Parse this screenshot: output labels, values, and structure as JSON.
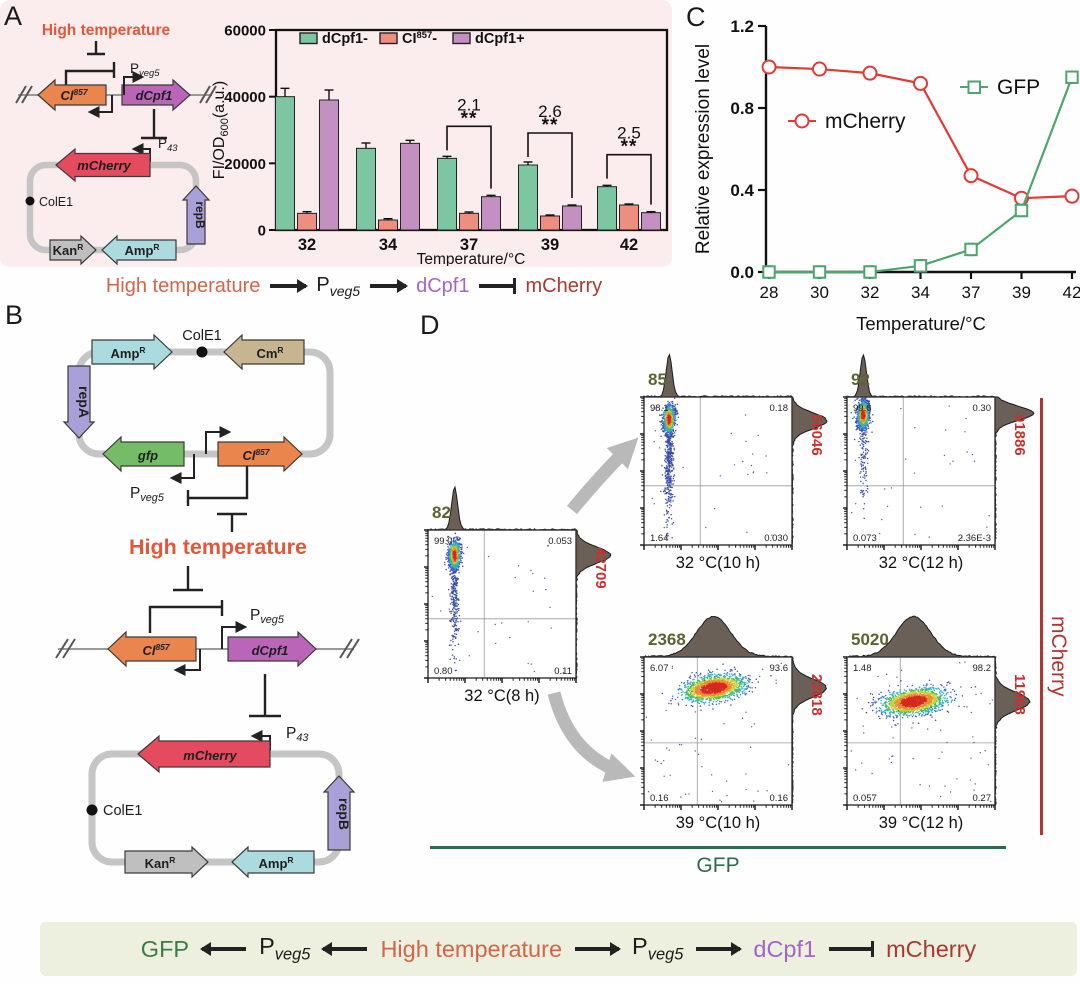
{
  "figure": {
    "panel_labels": {
      "a": "A",
      "b": "B",
      "c": "C",
      "d": "D"
    }
  },
  "colors": {
    "pink_bg": "#fbeced",
    "banner_bg": "#edf0df",
    "bar_green": "#7cc6a2",
    "bar_salmon": "#ee8e7e",
    "bar_purple": "#c48fc1",
    "mcherry_arrow": "#e44b5f",
    "ci857_arrow": "#e9854d",
    "dcpf1_arrow": "#bb65b8",
    "amp_arrow": "#abdbdf",
    "kan_arrow": "#bfbfbf",
    "rep_arrow": "#a9a0d8",
    "cm_arrow": "#c8b58f",
    "gfp_arrow": "#74bd66",
    "backbone": "#c5c5c5",
    "high_temp_text": "#e2573a",
    "gfp_text": "#3c7c46",
    "mcherry_text": "#a93a30",
    "dcpf1_text": "#a465c9",
    "flow_red_number": "#c53230",
    "flow_olive_number": "#5b6430",
    "hist_fill": "#6a6057",
    "gray_arrow": "#b9b9b9",
    "line_mcherry": "#e03a36",
    "line_gfp": "#4da46c"
  },
  "panel_a": {
    "diagram": {
      "high_temp": "High temperature",
      "pveg5": {
        "base": "P",
        "sub": "veg5"
      },
      "ci857": {
        "base": "Cl",
        "sup": "857"
      },
      "dcpf1": "dCpf1",
      "p43": {
        "base": "P",
        "sub": "43"
      },
      "mcherry": "mCherry",
      "cole1": "ColE1",
      "kan": {
        "base": "Kan",
        "sup": "R"
      },
      "amp": {
        "base": "Amp",
        "sup": "R"
      },
      "repb": "repB"
    },
    "scheme": {
      "high_temp": "High temperature",
      "pveg5": {
        "base": "P",
        "sub": "veg5"
      },
      "dcpf1": "dCpf1",
      "mcherry": "mCherry"
    }
  },
  "chart_data": [
    {
      "type": "bar",
      "panel": "A",
      "categories": [
        "32",
        "34",
        "37",
        "39",
        "42"
      ],
      "series": [
        {
          "label": "dCpf1-",
          "color": "#7cc6a2",
          "values": [
            40000,
            24500,
            21500,
            19500,
            13000
          ],
          "errors": [
            2500,
            1600,
            600,
            900,
            400
          ]
        },
        {
          "label": {
            "base": "CI",
            "sup": "857",
            "suffix": "-"
          },
          "color": "#ee8e7e",
          "values": [
            5000,
            3000,
            5000,
            4200,
            7500
          ],
          "errors": [
            500,
            400,
            400,
            300,
            300
          ]
        },
        {
          "label": "dCpf1+",
          "color": "#c48fc1",
          "values": [
            39000,
            26000,
            10000,
            7200,
            5200
          ],
          "errors": [
            3000,
            900,
            400,
            300,
            300
          ]
        }
      ],
      "ylabel": {
        "base": "FI/OD",
        "sub": "600",
        "suffix": "(a.u.)"
      },
      "xlabel": "Temperature/°C",
      "ylim": [
        0,
        60000
      ],
      "yticks": [
        0,
        20000,
        40000,
        60000
      ],
      "ytick_labels": [
        "0",
        "20000",
        "40000",
        "60000"
      ],
      "grid": false,
      "legend_position": "top-inside",
      "annotations": [
        {
          "category": "37",
          "ratio": "2.1",
          "stars": "**"
        },
        {
          "category": "39",
          "ratio": "2.6",
          "stars": "**"
        },
        {
          "category": "42",
          "ratio": "2.5",
          "stars": "**"
        }
      ]
    },
    {
      "type": "line",
      "panel": "C",
      "x": [
        "28",
        "30",
        "32",
        "34",
        "37",
        "39",
        "42"
      ],
      "series": [
        {
          "name": "mCherry",
          "color": "#e03a36",
          "marker": "circle",
          "values": [
            1.0,
            0.99,
            0.97,
            0.92,
            0.47,
            0.36,
            0.37
          ]
        },
        {
          "name": "GFP",
          "color": "#4da46c",
          "marker": "square",
          "values": [
            0.0,
            0.0,
            0.0,
            0.03,
            0.11,
            0.3,
            0.95
          ]
        }
      ],
      "ylabel": "Relative expression level",
      "xlabel": "Temperature/°C",
      "ylim": [
        0,
        1.2
      ],
      "yticks": [
        0,
        0.4,
        0.8,
        1.2
      ],
      "ytick_labels": [
        "0.0",
        "0.4",
        "0.8",
        "1.2"
      ],
      "grid": false,
      "legend": [
        {
          "series": "GFP",
          "position": "upper-right"
        },
        {
          "series": "mCherry",
          "position": "middle-left"
        }
      ]
    }
  ],
  "panel_b": {
    "plasmid1": {
      "amp": {
        "base": "Amp",
        "sup": "R"
      },
      "cole1": "ColE1",
      "cm": {
        "base": "Cm",
        "sup": "R"
      },
      "repa": "repA",
      "gfp": "gfp",
      "ci857": {
        "base": "Cl",
        "sup": "857"
      },
      "pveg5": {
        "base": "P",
        "sub": "veg5"
      }
    },
    "high_temp": "High temperature",
    "genome": {
      "ci857": {
        "base": "Cl",
        "sup": "857"
      },
      "dcpf1": "dCpf1",
      "pveg5": {
        "base": "P",
        "sub": "veg5"
      }
    },
    "plasmid2": {
      "p43": {
        "base": "P",
        "sub": "43"
      },
      "mcherry": "mCherry",
      "cole1": "ColE1",
      "repb": "repB",
      "kan": {
        "base": "Kan",
        "sup": "R"
      },
      "amp": {
        "base": "Amp",
        "sup": "R"
      }
    }
  },
  "panel_d": {
    "plots": [
      {
        "label": "32 °C(8 h)",
        "gfp_value": "82",
        "mcherry_value": "42709",
        "quadrants": {
          "tl": "99.0",
          "tr": "0.053",
          "bl": "0.80",
          "br": "0.11"
        }
      },
      {
        "label": "32 °C(10 h)",
        "gfp_value": "85",
        "mcherry_value": "56046",
        "quadrants": {
          "tl": "98.1",
          "tr": "0.18",
          "bl": "1.64",
          "br": "0.030"
        }
      },
      {
        "label": "32 °C(12 h)",
        "gfp_value": "92",
        "mcherry_value": "91886",
        "quadrants": {
          "tl": "99.6",
          "tr": "0.30",
          "bl": "0.073",
          "br": "2.36E-3"
        }
      },
      {
        "label": "39 °C(10 h)",
        "gfp_value": "2368",
        "mcherry_value": "22818",
        "quadrants": {
          "tl": "6.07",
          "tr": "93.6",
          "bl": "0.16",
          "br": "0.16"
        }
      },
      {
        "label": "39 °C(12 h)",
        "gfp_value": "5020",
        "mcherry_value": "11968",
        "quadrants": {
          "tl": "1.48",
          "tr": "98.2",
          "bl": "0.057",
          "br": "0.27"
        }
      }
    ],
    "x_axis_label": "GFP",
    "y_axis_label": "mCherry"
  },
  "banner": {
    "gfp": "GFP",
    "pveg5_left": {
      "base": "P",
      "sub": "veg5"
    },
    "high_temp": "High temperature",
    "pveg5_right": {
      "base": "P",
      "sub": "veg5"
    },
    "dcpf1": "dCpf1",
    "mcherry": "mCherry"
  }
}
